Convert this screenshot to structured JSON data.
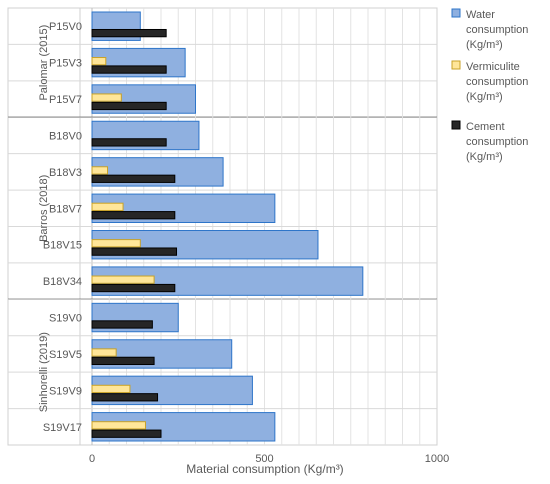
{
  "chart_data": {
    "type": "bar",
    "orientation": "horizontal",
    "xlabel": "Material consumption (Kg/m³)",
    "xlim": [
      0,
      1000
    ],
    "xticks": [
      0,
      500,
      1000
    ],
    "grid": true,
    "legend_position": "right",
    "groups": [
      {
        "name": "Palomar (2015)",
        "categories": [
          "P15V0",
          "P15V3",
          "P15V7"
        ]
      },
      {
        "name": "Barros (2018)",
        "categories": [
          "B18V0",
          "B18V3",
          "B18V7",
          "B18V15",
          "B18V34"
        ]
      },
      {
        "name": "Sinhorelli (2019)",
        "categories": [
          "S19V0",
          "S19V5",
          "S19V9",
          "S19V17"
        ]
      }
    ],
    "categories": [
      "P15V0",
      "P15V3",
      "P15V7",
      "B18V0",
      "B18V3",
      "B18V7",
      "B18V15",
      "B18V34",
      "S19V0",
      "S19V5",
      "S19V9",
      "S19V17"
    ],
    "series": [
      {
        "name": "Water consumption (Kg/m³)",
        "color": "#8fb0e0",
        "border": "#2e75c9",
        "values": [
          140,
          270,
          300,
          310,
          380,
          530,
          655,
          785,
          250,
          405,
          465,
          530
        ]
      },
      {
        "name": "Vermiculite consumption (Kg/m³)",
        "color": "#ffe699",
        "border": "#c9a227",
        "values": [
          0,
          40,
          85,
          0,
          45,
          90,
          140,
          180,
          0,
          70,
          110,
          155
        ]
      },
      {
        "name": "Cement consumption (Kg/m³)",
        "color": "#262626",
        "border": "#000000",
        "values": [
          215,
          215,
          215,
          215,
          240,
          240,
          245,
          240,
          175,
          180,
          190,
          200
        ]
      }
    ]
  }
}
